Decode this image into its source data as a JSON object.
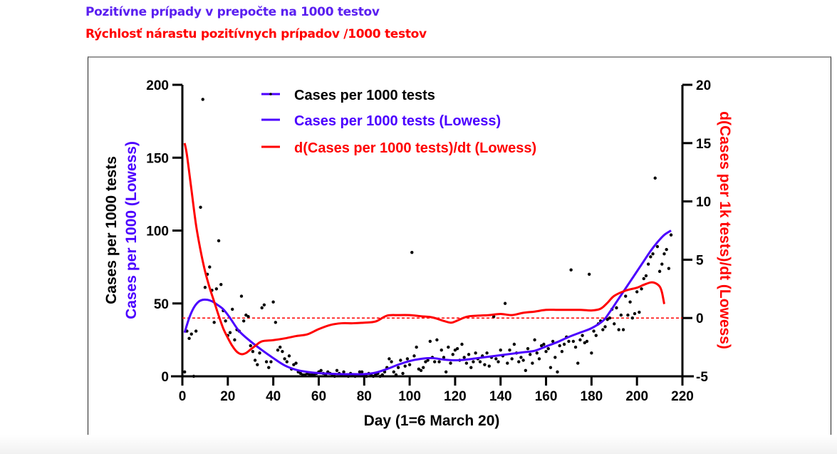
{
  "header": {
    "title_line1": "Pozitívne prípady v prepočte na 1000 testov",
    "title_line2": "Rýchlosť nárastu pozitívnych prípadov /1000 testov"
  },
  "colors": {
    "blue": "#4b00ff",
    "red": "#ff0000",
    "points": "#000000",
    "axis": "#000000"
  },
  "chart_data": {
    "type": "scatter",
    "xlabel": "Day (1=6 March 20)",
    "ylabel_left_line1": "Cases per 1000 tests",
    "ylabel_left_line2": "Cases per 1000 (Lowess)",
    "ylabel_right": "d(Cases per 1k tests)/dt (Lowess)",
    "xlim": [
      0,
      220
    ],
    "ylim_left": [
      0,
      200
    ],
    "ylim_right": [
      -5,
      20
    ],
    "x_ticks": [
      "0",
      "20",
      "40",
      "60",
      "80",
      "100",
      "120",
      "140",
      "160",
      "180",
      "200",
      "220"
    ],
    "y_left_ticks": [
      "0",
      "50",
      "100",
      "150",
      "200"
    ],
    "y_right_ticks": [
      "-5",
      "0",
      "5",
      "10",
      "15",
      "20"
    ],
    "legend_position": "top-center",
    "legend": [
      {
        "label": "Cases per 1000 tests",
        "color": "#000000",
        "style": "dot-line"
      },
      {
        "label": "Cases per 1000 tests (Lowess)",
        "color": "#4b00ff",
        "style": "line"
      },
      {
        "label": "d(Cases per 1000 tests)/dt (Lowess)",
        "color": "#ff0000",
        "style": "line"
      }
    ],
    "reference_line": {
      "axis": "right",
      "value": 0,
      "style": "dashed",
      "color": "#ff0000"
    },
    "series": [
      {
        "name": "Cases per 1000 tests",
        "axis": "left",
        "kind": "points",
        "points": [
          [
            1,
            3
          ],
          [
            2,
            31
          ],
          [
            3,
            26
          ],
          [
            4,
            29
          ],
          [
            5,
            0
          ],
          [
            6,
            31
          ],
          [
            8,
            116
          ],
          [
            9,
            190
          ],
          [
            10,
            61
          ],
          [
            11,
            70
          ],
          [
            12,
            75
          ],
          [
            13,
            59
          ],
          [
            14,
            37
          ],
          [
            15,
            60
          ],
          [
            16,
            93
          ],
          [
            17,
            63
          ],
          [
            18,
            45
          ],
          [
            19,
            38
          ],
          [
            20,
            28
          ],
          [
            21,
            30
          ],
          [
            22,
            46
          ],
          [
            23,
            25
          ],
          [
            24,
            32
          ],
          [
            25,
            31
          ],
          [
            26,
            55
          ],
          [
            27,
            38
          ],
          [
            28,
            42
          ],
          [
            29,
            41
          ],
          [
            30,
            21
          ],
          [
            31,
            17
          ],
          [
            32,
            11
          ],
          [
            33,
            8
          ],
          [
            34,
            16
          ],
          [
            35,
            47
          ],
          [
            36,
            49
          ],
          [
            37,
            10
          ],
          [
            38,
            6
          ],
          [
            39,
            10
          ],
          [
            40,
            51
          ],
          [
            41,
            37
          ],
          [
            42,
            18
          ],
          [
            43,
            20
          ],
          [
            44,
            17
          ],
          [
            45,
            12
          ],
          [
            46,
            10
          ],
          [
            47,
            14
          ],
          [
            48,
            5
          ],
          [
            49,
            8
          ],
          [
            50,
            9
          ],
          [
            51,
            3
          ],
          [
            52,
            2
          ],
          [
            53,
            1
          ],
          [
            54,
            1
          ],
          [
            55,
            2
          ],
          [
            56,
            1
          ],
          [
            57,
            1
          ],
          [
            58,
            1
          ],
          [
            59,
            2
          ],
          [
            60,
            3
          ],
          [
            61,
            4
          ],
          [
            62,
            2
          ],
          [
            63,
            1
          ],
          [
            64,
            3
          ],
          [
            65,
            2
          ],
          [
            66,
            1
          ],
          [
            67,
            0
          ],
          [
            68,
            4
          ],
          [
            69,
            2
          ],
          [
            70,
            1
          ],
          [
            71,
            3
          ],
          [
            72,
            1
          ],
          [
            73,
            0
          ],
          [
            74,
            2
          ],
          [
            75,
            1
          ],
          [
            76,
            0
          ],
          [
            77,
            1
          ],
          [
            78,
            3
          ],
          [
            79,
            3
          ],
          [
            80,
            1
          ],
          [
            81,
            0
          ],
          [
            82,
            2
          ],
          [
            83,
            1
          ],
          [
            84,
            0
          ],
          [
            85,
            1
          ],
          [
            86,
            2
          ],
          [
            87,
            0
          ],
          [
            88,
            1
          ],
          [
            89,
            3
          ],
          [
            90,
            6
          ],
          [
            91,
            12
          ],
          [
            92,
            10
          ],
          [
            93,
            3
          ],
          [
            94,
            1
          ],
          [
            95,
            6
          ],
          [
            96,
            11
          ],
          [
            97,
            2
          ],
          [
            98,
            7
          ],
          [
            99,
            12
          ],
          [
            100,
            8
          ],
          [
            101,
            85
          ],
          [
            102,
            14
          ],
          [
            103,
            20
          ],
          [
            104,
            5
          ],
          [
            105,
            4
          ],
          [
            106,
            6
          ],
          [
            107,
            10
          ],
          [
            108,
            11
          ],
          [
            109,
            24
          ],
          [
            110,
            13
          ],
          [
            111,
            10
          ],
          [
            112,
            25
          ],
          [
            113,
            10
          ],
          [
            114,
            18
          ],
          [
            115,
            13
          ],
          [
            116,
            3
          ],
          [
            117,
            20
          ],
          [
            118,
            9
          ],
          [
            119,
            15
          ],
          [
            120,
            18
          ],
          [
            121,
            19
          ],
          [
            122,
            11
          ],
          [
            123,
            22
          ],
          [
            124,
            13
          ],
          [
            125,
            9
          ],
          [
            126,
            15
          ],
          [
            127,
            6
          ],
          [
            128,
            10
          ],
          [
            129,
            16
          ],
          [
            130,
            12
          ],
          [
            131,
            10
          ],
          [
            132,
            14
          ],
          [
            133,
            8
          ],
          [
            134,
            16
          ],
          [
            135,
            7
          ],
          [
            136,
            13
          ],
          [
            137,
            41
          ],
          [
            138,
            12
          ],
          [
            139,
            10
          ],
          [
            140,
            18
          ],
          [
            141,
            14
          ],
          [
            142,
            50
          ],
          [
            143,
            9
          ],
          [
            144,
            18
          ],
          [
            145,
            12
          ],
          [
            146,
            22
          ],
          [
            147,
            16
          ],
          [
            148,
            10
          ],
          [
            149,
            13
          ],
          [
            150,
            11
          ],
          [
            151,
            4
          ],
          [
            152,
            19
          ],
          [
            153,
            15
          ],
          [
            154,
            9
          ],
          [
            155,
            25
          ],
          [
            156,
            16
          ],
          [
            157,
            12
          ],
          [
            158,
            21
          ],
          [
            159,
            22
          ],
          [
            160,
            17
          ],
          [
            161,
            19
          ],
          [
            162,
            6
          ],
          [
            163,
            24
          ],
          [
            164,
            13
          ],
          [
            165,
            3
          ],
          [
            166,
            21
          ],
          [
            167,
            17
          ],
          [
            168,
            22
          ],
          [
            169,
            27
          ],
          [
            170,
            24
          ],
          [
            171,
            73
          ],
          [
            172,
            24
          ],
          [
            173,
            20
          ],
          [
            174,
            9
          ],
          [
            175,
            25
          ],
          [
            176,
            28
          ],
          [
            177,
            23
          ],
          [
            178,
            24
          ],
          [
            179,
            70
          ],
          [
            180,
            16
          ],
          [
            181,
            31
          ],
          [
            182,
            28
          ],
          [
            183,
            36
          ],
          [
            184,
            38
          ],
          [
            185,
            32
          ],
          [
            186,
            34
          ],
          [
            187,
            39
          ],
          [
            188,
            40
          ],
          [
            189,
            46
          ],
          [
            190,
            36
          ],
          [
            191,
            47
          ],
          [
            192,
            32
          ],
          [
            193,
            42
          ],
          [
            194,
            32
          ],
          [
            195,
            55
          ],
          [
            196,
            42
          ],
          [
            197,
            51
          ],
          [
            198,
            40
          ],
          [
            199,
            43
          ],
          [
            200,
            58
          ],
          [
            201,
            44
          ],
          [
            202,
            60
          ],
          [
            203,
            67
          ],
          [
            204,
            69
          ],
          [
            205,
            77
          ],
          [
            206,
            82
          ],
          [
            207,
            84
          ],
          [
            208,
            136
          ],
          [
            209,
            89
          ],
          [
            210,
            72
          ],
          [
            211,
            77
          ],
          [
            212,
            84
          ],
          [
            213,
            87
          ],
          [
            214,
            74
          ],
          [
            215,
            97
          ]
        ]
      },
      {
        "name": "Cases per 1000 tests (Lowess)",
        "axis": "left",
        "kind": "line",
        "x": [
          1,
          3,
          5,
          7,
          9,
          11,
          13,
          15,
          18,
          21,
          25,
          30,
          35,
          40,
          45,
          50,
          55,
          60,
          65,
          70,
          75,
          80,
          85,
          90,
          95,
          100,
          105,
          110,
          115,
          120,
          125,
          130,
          135,
          140,
          145,
          150,
          155,
          160,
          165,
          170,
          175,
          180,
          185,
          188,
          191,
          194,
          197,
          200,
          203,
          206,
          209,
          212,
          215
        ],
        "y": [
          30,
          40,
          47,
          51,
          52.5,
          52.5,
          51.5,
          49.5,
          46,
          40,
          31,
          24,
          18,
          12.5,
          7.5,
          4.5,
          3,
          2.2,
          1.8,
          1.5,
          1.5,
          1.5,
          2.5,
          5,
          8,
          10.5,
          12,
          12.5,
          11.5,
          11,
          11.5,
          12.5,
          13.5,
          14.5,
          15.5,
          16.5,
          17.5,
          20.5,
          23.5,
          27,
          30,
          33,
          38,
          44,
          51,
          58,
          65,
          72,
          79,
          86,
          92,
          97,
          100
        ]
      },
      {
        "name": "d(Cases per 1000 tests)/dt (Lowess)",
        "axis": "right",
        "kind": "line",
        "x": [
          1,
          2,
          4,
          6,
          8,
          10,
          12,
          14,
          16,
          18,
          20,
          22,
          24,
          26,
          28,
          30,
          32,
          35,
          40,
          45,
          50,
          55,
          60,
          65,
          70,
          75,
          80,
          85,
          90,
          95,
          100,
          105,
          110,
          115,
          118,
          120,
          125,
          130,
          135,
          140,
          145,
          150,
          155,
          160,
          165,
          170,
          175,
          180,
          184,
          187,
          190,
          195,
          200,
          203,
          206,
          208,
          210,
          211,
          212
        ],
        "y": [
          15,
          14,
          11,
          8,
          5.8,
          4,
          2.6,
          1.4,
          0.2,
          -0.9,
          -1.7,
          -2.4,
          -2.9,
          -3.1,
          -3.0,
          -2.7,
          -2.4,
          -2.0,
          -1.9,
          -1.75,
          -1.55,
          -1.4,
          -0.95,
          -0.6,
          -0.45,
          -0.45,
          -0.4,
          -0.3,
          0.2,
          0.25,
          0.25,
          0.15,
          0.05,
          -0.25,
          -0.4,
          -0.3,
          0.1,
          0.2,
          0.25,
          0.35,
          0.25,
          0.45,
          0.55,
          0.7,
          0.7,
          0.7,
          0.7,
          0.65,
          0.8,
          1.3,
          1.9,
          2.35,
          2.6,
          2.85,
          3.05,
          3.0,
          2.7,
          2.2,
          1.2
        ]
      }
    ]
  }
}
